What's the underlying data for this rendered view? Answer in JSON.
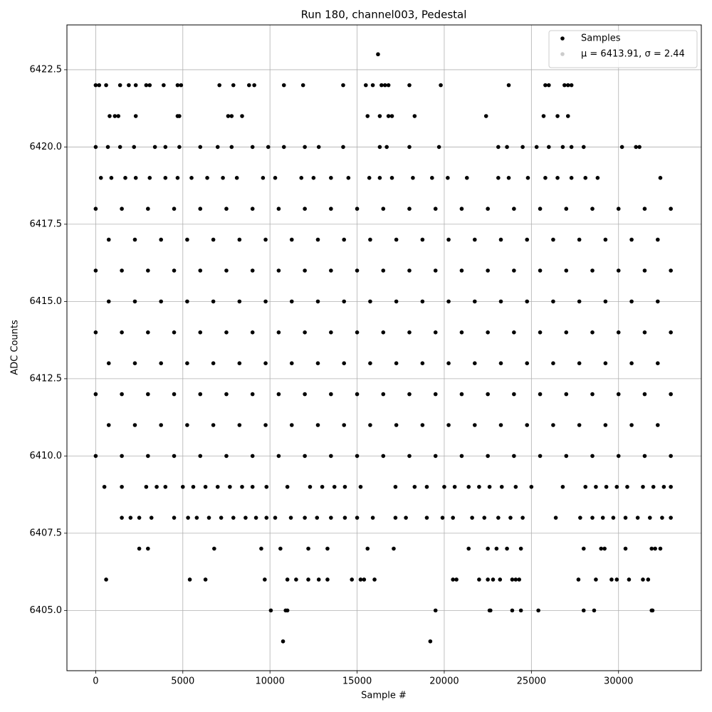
{
  "chart_data": {
    "type": "scatter",
    "title": "Run 180, channel003, Pedestal",
    "xlabel": "Sample #",
    "ylabel": "ADC Counts",
    "xlim": [
      -1650,
      34750
    ],
    "ylim": [
      6403.05,
      6423.95
    ],
    "xticks": [
      0,
      5000,
      10000,
      15000,
      20000,
      25000,
      30000
    ],
    "yticks": [
      {
        "value": 6405,
        "label": "6405.0"
      },
      6407.5,
      {
        "value": 6410,
        "label": "6410.0"
      },
      6412.5,
      {
        "value": 6415,
        "label": "6415.0"
      },
      6417.5,
      {
        "value": 6420,
        "label": "6420.0"
      },
      6422.5
    ],
    "grid": true,
    "legend": "upper right",
    "series": [
      {
        "name": "Samples",
        "color": "#000000",
        "x": [
          10750,
          19200,
          10050,
          10900,
          11000,
          19500,
          22600,
          22650,
          23900,
          24400,
          25400,
          28000,
          28600,
          31900,
          31950,
          600,
          5400,
          6300,
          9700,
          11000,
          11500,
          12200,
          12800,
          13300,
          14700,
          15200,
          15400,
          16000,
          20500,
          20700,
          22000,
          22500,
          22800,
          23200,
          23900,
          24100,
          24300,
          27700,
          28700,
          29600,
          29900,
          30600,
          31400,
          31700,
          2500,
          3000,
          6800,
          9500,
          10600,
          12200,
          13300,
          15600,
          17100,
          21400,
          22500,
          23000,
          23600,
          24400,
          28000,
          29000,
          29200,
          30400,
          31900,
          32100,
          32400,
          1500,
          2000,
          2500,
          3200,
          4500,
          5300,
          5800,
          6500,
          7200,
          7900,
          8600,
          9200,
          9800,
          10300,
          11200,
          12000,
          12700,
          13500,
          14300,
          15000,
          15900,
          17200,
          17800,
          19000,
          19900,
          20500,
          21600,
          22300,
          23100,
          23800,
          24500,
          26400,
          27800,
          28500,
          29100,
          29700,
          30400,
          31100,
          31800,
          32500,
          33000,
          500,
          1500,
          2900,
          3500,
          4000,
          5000,
          5600,
          6300,
          7000,
          7700,
          8400,
          9000,
          9800,
          11000,
          12300,
          13000,
          13700,
          14300,
          15200,
          17200,
          18300,
          19000,
          20000,
          20600,
          21400,
          22000,
          22600,
          23300,
          24100,
          25000,
          26800,
          28100,
          28700,
          29300,
          29900,
          30500,
          31400,
          32000,
          32600,
          33000,
          0,
          1500,
          3000,
          4500,
          6000,
          7500,
          9000,
          10500,
          12000,
          13500,
          15000,
          16500,
          18000,
          19500,
          21000,
          22500,
          24000,
          25500,
          27000,
          28500,
          30000,
          31500,
          33000,
          750,
          2250,
          3750,
          5250,
          6750,
          8250,
          9750,
          11250,
          12750,
          14250,
          15750,
          17250,
          18750,
          20250,
          21750,
          23250,
          24750,
          26250,
          27750,
          29250,
          30750,
          32250,
          0,
          1500,
          3000,
          4500,
          6000,
          7500,
          9000,
          10500,
          12000,
          13500,
          15000,
          16500,
          18000,
          19500,
          21000,
          22500,
          24000,
          25500,
          27000,
          28500,
          30000,
          31500,
          33000,
          750,
          2250,
          3750,
          5250,
          6750,
          8250,
          9750,
          11250,
          12750,
          14250,
          15750,
          17250,
          18750,
          20250,
          21750,
          23250,
          24750,
          26250,
          27750,
          29250,
          30750,
          32250,
          0,
          1500,
          3000,
          4500,
          6000,
          7500,
          9000,
          10500,
          12000,
          13500,
          15000,
          16500,
          18000,
          19500,
          21000,
          22500,
          24000,
          25500,
          27000,
          28500,
          30000,
          31500,
          33000,
          750,
          2250,
          3750,
          5250,
          6750,
          8250,
          9750,
          11250,
          12750,
          14250,
          15750,
          17250,
          18750,
          20250,
          21750,
          23250,
          24750,
          26250,
          27750,
          29250,
          30750,
          32250,
          0,
          1500,
          3000,
          4500,
          6000,
          7500,
          9000,
          10500,
          12000,
          13500,
          15000,
          16500,
          18000,
          19500,
          21000,
          22500,
          24000,
          25500,
          27000,
          28500,
          30000,
          31500,
          33000,
          750,
          2250,
          3750,
          5250,
          6750,
          8250,
          9750,
          11250,
          12750,
          14250,
          15750,
          17250,
          18750,
          20250,
          21750,
          23250,
          24750,
          26250,
          27750,
          29250,
          30750,
          32250,
          0,
          1500,
          3000,
          4500,
          6000,
          7500,
          9000,
          10500,
          12000,
          13500,
          15000,
          16500,
          18000,
          19500,
          21000,
          22500,
          24000,
          25500,
          27000,
          28500,
          30000,
          31500,
          33000,
          300,
          900,
          1700,
          2300,
          3100,
          4000,
          4700,
          5500,
          6400,
          7300,
          8100,
          9600,
          10300,
          11800,
          12500,
          13500,
          14500,
          15700,
          16300,
          17000,
          18200,
          19300,
          20200,
          21300,
          23100,
          23700,
          24800,
          25800,
          26500,
          27300,
          28100,
          28800,
          32400,
          0,
          700,
          1400,
          2200,
          3400,
          4000,
          4800,
          6000,
          7000,
          7800,
          9000,
          9900,
          10800,
          12000,
          12800,
          14200,
          16300,
          16700,
          18000,
          19700,
          23100,
          23600,
          24500,
          25300,
          26000,
          26800,
          27300,
          28000,
          30200,
          31000,
          31200,
          800,
          1100,
          1300,
          2300,
          4700,
          4800,
          7600,
          7800,
          8400,
          15600,
          16300,
          16800,
          17000,
          18300,
          22400,
          25700,
          26500,
          27100,
          0,
          200,
          600,
          1400,
          1900,
          2300,
          2900,
          3100,
          3900,
          4700,
          4900,
          7100,
          7900,
          8800,
          9100,
          10800,
          11900,
          14200,
          15500,
          15900,
          16400,
          16600,
          16800,
          18000,
          19800,
          23700,
          25800,
          26000,
          26900,
          27100,
          27300,
          16200
        ],
        "values": [
          6404,
          6404,
          6405,
          6405,
          6405,
          6405,
          6405,
          6405,
          6405,
          6405,
          6405,
          6405,
          6405,
          6405,
          6405,
          6406,
          6406,
          6406,
          6406,
          6406,
          6406,
          6406,
          6406,
          6406,
          6406,
          6406,
          6406,
          6406,
          6406,
          6406,
          6406,
          6406,
          6406,
          6406,
          6406,
          6406,
          6406,
          6406,
          6406,
          6406,
          6406,
          6406,
          6406,
          6406,
          6407,
          6407,
          6407,
          6407,
          6407,
          6407,
          6407,
          6407,
          6407,
          6407,
          6407,
          6407,
          6407,
          6407,
          6407,
          6407,
          6407,
          6407,
          6407,
          6407,
          6407,
          6408,
          6408,
          6408,
          6408,
          6408,
          6408,
          6408,
          6408,
          6408,
          6408,
          6408,
          6408,
          6408,
          6408,
          6408,
          6408,
          6408,
          6408,
          6408,
          6408,
          6408,
          6408,
          6408,
          6408,
          6408,
          6408,
          6408,
          6408,
          6408,
          6408,
          6408,
          6408,
          6408,
          6408,
          6408,
          6408,
          6408,
          6408,
          6408,
          6408,
          6408,
          6409,
          6409,
          6409,
          6409,
          6409,
          6409,
          6409,
          6409,
          6409,
          6409,
          6409,
          6409,
          6409,
          6409,
          6409,
          6409,
          6409,
          6409,
          6409,
          6409,
          6409,
          6409,
          6409,
          6409,
          6409,
          6409,
          6409,
          6409,
          6409,
          6409,
          6409,
          6409,
          6409,
          6409,
          6409,
          6409,
          6409,
          6409,
          6409,
          6409,
          6410,
          6410,
          6410,
          6410,
          6410,
          6410,
          6410,
          6410,
          6410,
          6410,
          6410,
          6410,
          6410,
          6410,
          6410,
          6410,
          6410,
          6410,
          6410,
          6410,
          6410,
          6410,
          6410,
          6411,
          6411,
          6411,
          6411,
          6411,
          6411,
          6411,
          6411,
          6411,
          6411,
          6411,
          6411,
          6411,
          6411,
          6411,
          6411,
          6411,
          6411,
          6411,
          6411,
          6411,
          6411,
          6412,
          6412,
          6412,
          6412,
          6412,
          6412,
          6412,
          6412,
          6412,
          6412,
          6412,
          6412,
          6412,
          6412,
          6412,
          6412,
          6412,
          6412,
          6412,
          6412,
          6412,
          6412,
          6412,
          6413,
          6413,
          6413,
          6413,
          6413,
          6413,
          6413,
          6413,
          6413,
          6413,
          6413,
          6413,
          6413,
          6413,
          6413,
          6413,
          6413,
          6413,
          6413,
          6413,
          6413,
          6413,
          6414,
          6414,
          6414,
          6414,
          6414,
          6414,
          6414,
          6414,
          6414,
          6414,
          6414,
          6414,
          6414,
          6414,
          6414,
          6414,
          6414,
          6414,
          6414,
          6414,
          6414,
          6414,
          6414,
          6415,
          6415,
          6415,
          6415,
          6415,
          6415,
          6415,
          6415,
          6415,
          6415,
          6415,
          6415,
          6415,
          6415,
          6415,
          6415,
          6415,
          6415,
          6415,
          6415,
          6415,
          6415,
          6416,
          6416,
          6416,
          6416,
          6416,
          6416,
          6416,
          6416,
          6416,
          6416,
          6416,
          6416,
          6416,
          6416,
          6416,
          6416,
          6416,
          6416,
          6416,
          6416,
          6416,
          6416,
          6416,
          6417,
          6417,
          6417,
          6417,
          6417,
          6417,
          6417,
          6417,
          6417,
          6417,
          6417,
          6417,
          6417,
          6417,
          6417,
          6417,
          6417,
          6417,
          6417,
          6417,
          6417,
          6417,
          6418,
          6418,
          6418,
          6418,
          6418,
          6418,
          6418,
          6418,
          6418,
          6418,
          6418,
          6418,
          6418,
          6418,
          6418,
          6418,
          6418,
          6418,
          6418,
          6418,
          6418,
          6418,
          6418,
          6419,
          6419,
          6419,
          6419,
          6419,
          6419,
          6419,
          6419,
          6419,
          6419,
          6419,
          6419,
          6419,
          6419,
          6419,
          6419,
          6419,
          6419,
          6419,
          6419,
          6419,
          6419,
          6419,
          6419,
          6419,
          6419,
          6419,
          6419,
          6419,
          6419,
          6419,
          6419,
          6419,
          6420,
          6420,
          6420,
          6420,
          6420,
          6420,
          6420,
          6420,
          6420,
          6420,
          6420,
          6420,
          6420,
          6420,
          6420,
          6420,
          6420,
          6420,
          6420,
          6420,
          6420,
          6420,
          6420,
          6420,
          6420,
          6420,
          6420,
          6420,
          6420,
          6420,
          6420,
          6421,
          6421,
          6421,
          6421,
          6421,
          6421,
          6421,
          6421,
          6421,
          6421,
          6421,
          6421,
          6421,
          6421,
          6421,
          6421,
          6421,
          6421,
          6422,
          6422,
          6422,
          6422,
          6422,
          6422,
          6422,
          6422,
          6422,
          6422,
          6422,
          6422,
          6422,
          6422,
          6422,
          6422,
          6422,
          6422,
          6422,
          6422,
          6422,
          6422,
          6422,
          6422,
          6422,
          6422,
          6422,
          6422,
          6422,
          6422,
          6422,
          6423
        ]
      },
      {
        "name": "μ = 6413.91, σ = 2.44",
        "color": "#cccccc",
        "x": [],
        "values": []
      }
    ]
  }
}
